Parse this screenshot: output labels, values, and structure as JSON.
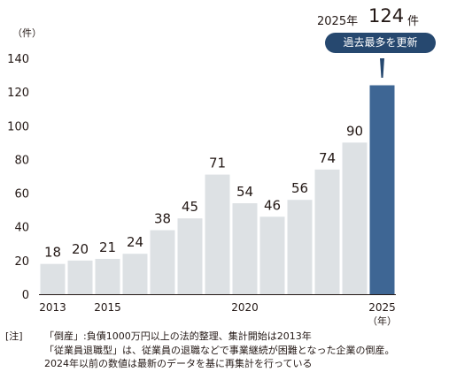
{
  "chart_data": {
    "type": "bar",
    "ylabel": "（件）",
    "ylim": [
      0,
      140
    ],
    "yticks": [
      0,
      20,
      40,
      60,
      80,
      100,
      120,
      140
    ],
    "x": [
      2013,
      2014,
      2015,
      2016,
      2017,
      2018,
      2019,
      2020,
      2021,
      2022,
      2023,
      2024,
      2025
    ],
    "values": [
      18,
      20,
      21,
      24,
      38,
      45,
      71,
      54,
      46,
      56,
      74,
      90,
      124
    ],
    "value_labels": [
      "18",
      "20",
      "21",
      "24",
      "38",
      "45",
      "71",
      "54",
      "46",
      "56",
      "74",
      "90",
      ""
    ],
    "xtick_labels": [
      "2013",
      "",
      "2015",
      "",
      "",
      "",
      "",
      "2020",
      "",
      "",
      "",
      "",
      "2025"
    ],
    "xunit": "（年）",
    "grid": false,
    "colors": {
      "bar": "#dde1e4",
      "highlight": "#3e6694",
      "text": "#231815"
    },
    "highlight_index": 12,
    "annotation": {
      "prefix": "2025年",
      "value": "124",
      "unit": "件",
      "badge": "過去最多を更新",
      "badge_color": "#26486f"
    }
  },
  "note": {
    "tag": "[注]",
    "lines": [
      "「倒産」:負債1000万円以上の法的整理、集計開始は2013年",
      "「従業員退職型」は、従業員の退職などで事業継続が困難となった企業の倒産。",
      "2024年以前の数値は最新のデータを基に再集計を行っている"
    ]
  }
}
